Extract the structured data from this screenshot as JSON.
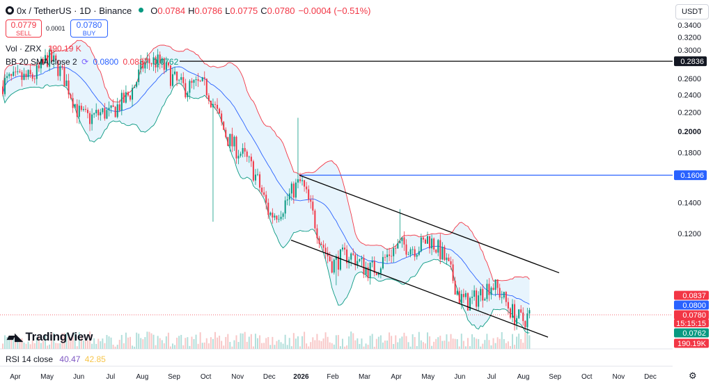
{
  "header": {
    "symbol_title": "0x / TetherUS · 1D · Binance",
    "open_label": "O",
    "open": "0.0784",
    "high_label": "H",
    "high": "0.0786",
    "low_label": "L",
    "low": "0.0775",
    "close_label": "C",
    "close": "0.0780",
    "change": "−0.0004 (−0.51%)"
  },
  "trade": {
    "sell_price": "0.0779",
    "sell_label": "SELL",
    "spread": "0.0001",
    "buy_price": "0.0780",
    "buy_label": "BUY"
  },
  "indicators": {
    "vol_label": "Vol · ZRX",
    "vol_value": "190.19 K",
    "bb_label": "BB 20 SMA close 2",
    "bb_basis": "0.0800",
    "bb_upper": "0.0837",
    "bb_lower": "0.0762",
    "rsi_label": "RSI 14 close",
    "rsi_value": "40.47",
    "rsi_ma": "42.85"
  },
  "currency_button": "USDT",
  "brand": "TradingView",
  "icons": {
    "settings": "gear-icon",
    "bb_settings": "refresh-icon",
    "status": "live-dot-icon"
  },
  "colors": {
    "up": "#089981",
    "down": "#f23645",
    "basis": "#2962ff",
    "upper_band": "#f23645",
    "lower_band": "#089981",
    "band_fill": "#e3f2fd",
    "channel": "#000000",
    "hline_resistance": "#000000",
    "hline_support": "#2962ff"
  },
  "chart_data": {
    "type": "candlestick",
    "title": "0x / TetherUS · 1D · Binance",
    "y_scale": "log",
    "y_range": [
      0.068,
      0.385
    ],
    "y_ticks": [
      "0.3400",
      "0.3200",
      "0.3000",
      "0.2600",
      "0.2400",
      "0.2200",
      "0.2000",
      "0.1800",
      "0.1400",
      "0.1200"
    ],
    "x_ticks": [
      "Apr",
      "May",
      "Jun",
      "Jul",
      "Aug",
      "Sep",
      "Oct",
      "Nov",
      "Dec",
      "2026",
      "Feb",
      "Mar",
      "Apr",
      "May",
      "Jun",
      "Jul",
      "Aug",
      "Sep",
      "Oct",
      "Nov",
      "Dec"
    ],
    "price_path_approx": [
      [
        "Apr",
        0.25
      ],
      [
        "May",
        0.29
      ],
      [
        "Jun",
        0.225
      ],
      [
        "Jul",
        0.21
      ],
      [
        "Aug",
        0.28
      ],
      [
        "Sep",
        0.265
      ],
      [
        "Oct",
        0.24
      ],
      [
        "Nov",
        0.185
      ],
      [
        "Dec",
        0.135
      ],
      [
        "2026",
        0.15
      ],
      [
        "Feb",
        0.105
      ],
      [
        "Mar",
        0.103
      ],
      [
        "Apr",
        0.108
      ],
      [
        "May",
        0.12
      ],
      [
        "Jun",
        0.088
      ],
      [
        "Jul",
        0.09
      ],
      [
        "Aug",
        0.08
      ]
    ],
    "horizontal_lines": [
      {
        "price": 0.2836,
        "label": "0.2836"
      },
      {
        "price": 0.1606,
        "label": "0.1606"
      }
    ],
    "price_labels": [
      {
        "label": "0.0837",
        "kind": "bb-upper"
      },
      {
        "label": "0.0800",
        "kind": "bb-basis"
      },
      {
        "label": "0.0780",
        "kind": "last-price"
      },
      {
        "label": "15:15:15",
        "kind": "countdown"
      },
      {
        "label": "0.0762",
        "kind": "bb-lower"
      },
      {
        "label": "190.19K",
        "kind": "volume"
      }
    ]
  }
}
